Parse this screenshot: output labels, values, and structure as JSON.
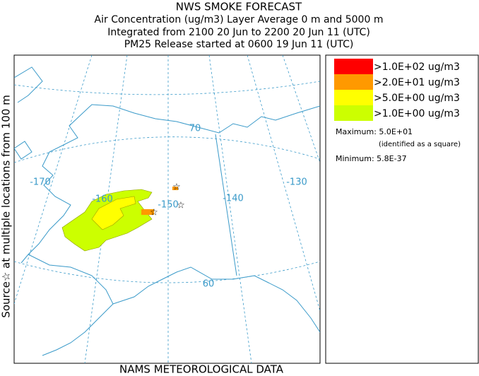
{
  "header": {
    "title": "NWS SMOKE FORECAST",
    "lines": [
      "Air Concentration (ug/m3) Layer Average    0 m and  5000 m",
      "Integrated from 2100 20 Jun to 2200 20 Jun 11 (UTC)",
      "PM25 Release started at 0600 19 Jun 11 (UTC)"
    ]
  },
  "side_label": "Source☆  at multiple locations   from   100 m",
  "map": {
    "labels": [
      "-170",
      "-160",
      "-150",
      "-140",
      "-130",
      "70",
      "60"
    ]
  },
  "legend": {
    "entries": [
      {
        "label": ">1.0E+02 ug/m3",
        "color": "#ff0000"
      },
      {
        "label": ">2.0E+01 ug/m3",
        "color": "#ff9900"
      },
      {
        "label": ">5.0E+00 ug/m3",
        "color": "#ffff00"
      },
      {
        "label": ">1.0E+00 ug/m3",
        "color": "#ccff00"
      }
    ],
    "maximum": "Maximum: 5.0E+01",
    "maximum_note": "(identified as a square)",
    "minimum": "Minimum: 5.8E-37"
  },
  "footer": "NAMS METEOROLOGICAL DATA"
}
